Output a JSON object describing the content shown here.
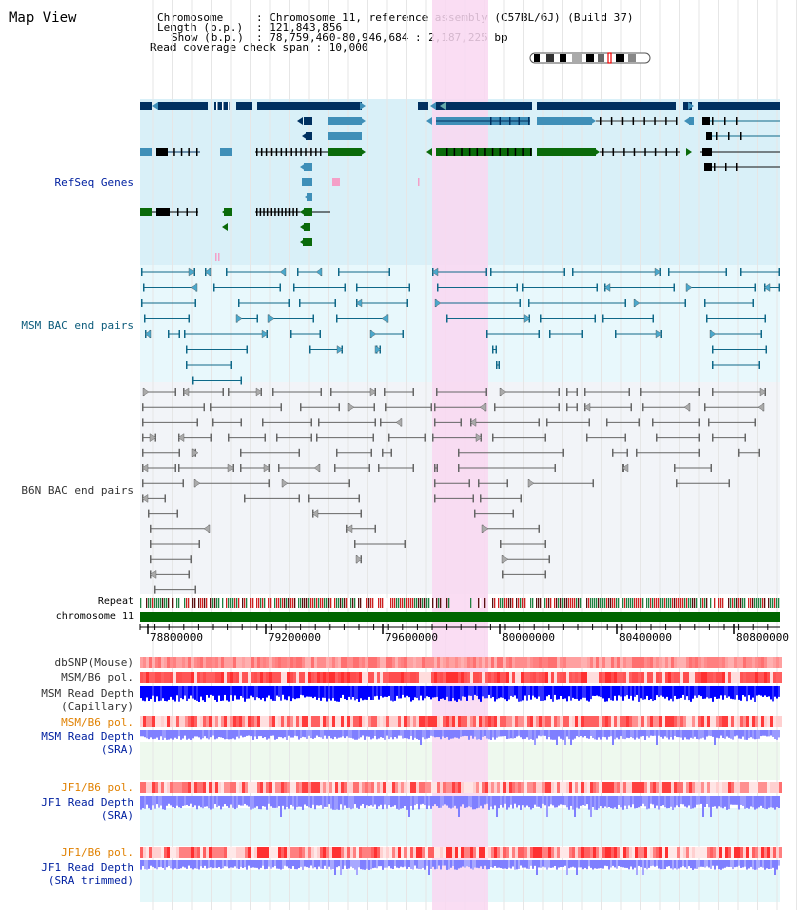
{
  "title": "Map View",
  "header": {
    "chromosome_key": "Chromosome",
    "chromosome_val": ": Chromosome 11, reference assembly (C57BL/6J) (Build 37)",
    "length_key": "Length (b.p.)",
    "length_val": ": 121,843,856",
    "show_key": "Show (b.p.)",
    "show_val": ": 78,759,460-80,946,684 : 2,187,225 bp",
    "coverage": "Read coverage check span : 10,000"
  },
  "tracks": {
    "refseq": "RefSeq Genes",
    "msm_bac": "MSM BAC end pairs",
    "b6n_bac": "B6N BAC end pairs",
    "repeat": "Repeat",
    "chromosome": "chromosome 11",
    "dbsnp": "dbSNP(Mouse)",
    "msm_pol1": "MSM/B6 pol.",
    "msm_depth_cap_1": "MSM Read Depth",
    "msm_depth_cap_2": "(Capillary)",
    "msm_pol2": "MSM/B6 pol.",
    "msm_depth_sra_1": "MSM Read Depth",
    "msm_depth_sra_2": "(SRA)",
    "jf1_pol1": "JF1/B6 pol.",
    "jf1_depth_sra_1": "JF1 Read Depth",
    "jf1_depth_sra_2": "(SRA)",
    "jf1_pol2": "JF1/B6 pol.",
    "jf1_depth_trim_1": "JF1 Read Depth",
    "jf1_depth_trim_2": "(SRA trimmed)"
  },
  "axis": {
    "ticks": [
      "78800000",
      "79200000",
      "79600000",
      "80000000",
      "80400000",
      "80800000"
    ]
  },
  "colors": {
    "refseq_bg": "#d9f0f8",
    "msm_bg": "#e8f8fc",
    "b6n_bg": "#f2f4f8",
    "highlight": "#f9d7f1",
    "navy": "#003060",
    "steel": "#3f8fb8",
    "green": "#0a6a0a",
    "teal": "#0f6888",
    "chrom": "#006600",
    "depth_cap": "#0000ff",
    "depth_sra": "#7f7fff"
  }
}
